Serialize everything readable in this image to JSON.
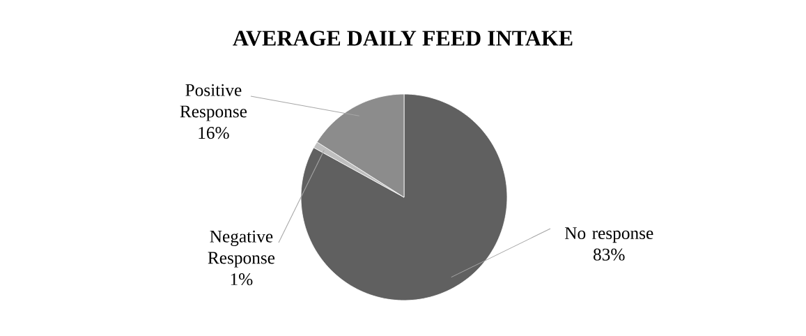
{
  "chart_data": {
    "type": "pie",
    "title": "AVERAGE DAILY FEED INTAKE",
    "categories": [
      "No response",
      "Negative Response",
      "Positive Response"
    ],
    "values": [
      83,
      1,
      16
    ],
    "value_labels": [
      "83%",
      "1%",
      "16%"
    ],
    "colors": [
      "#606060",
      "#bfbfbf",
      "#8c8c8c"
    ]
  }
}
